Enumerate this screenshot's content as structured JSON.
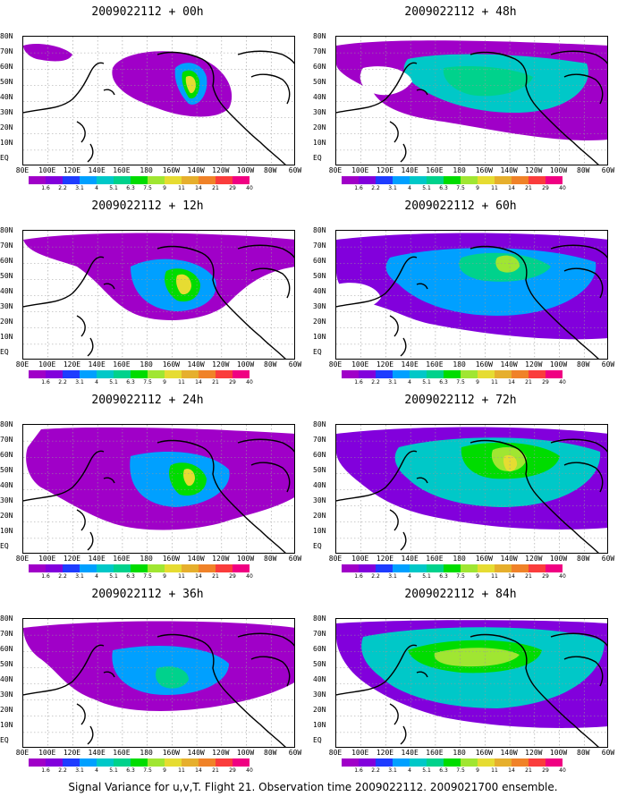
{
  "panels": [
    {
      "title": "2009022112 + 00h",
      "lead_hours": 0
    },
    {
      "title": "2009022112 + 48h",
      "lead_hours": 48
    },
    {
      "title": "2009022112 + 12h",
      "lead_hours": 12
    },
    {
      "title": "2009022112 + 60h",
      "lead_hours": 60
    },
    {
      "title": "2009022112 + 24h",
      "lead_hours": 24
    },
    {
      "title": "2009022112 + 72h",
      "lead_hours": 72
    },
    {
      "title": "2009022112 + 36h",
      "lead_hours": 36
    },
    {
      "title": "2009022112 + 84h",
      "lead_hours": 84
    }
  ],
  "lat_labels": [
    "80N",
    "70N",
    "60N",
    "50N",
    "40N",
    "30N",
    "20N",
    "10N",
    "EQ"
  ],
  "lon_labels": [
    "80E",
    "100E",
    "120E",
    "140E",
    "160E",
    "180",
    "160W",
    "140W",
    "120W",
    "100W",
    "80W",
    "60W"
  ],
  "colorbar": {
    "labels": [
      "1.6",
      "2.2",
      "3.1",
      "4",
      "5.1",
      "6.3",
      "7.5",
      "9",
      "11",
      "14",
      "21",
      "29",
      "40"
    ],
    "colors": [
      "#a000c8",
      "#8200dc",
      "#1e3cff",
      "#00a0ff",
      "#00c8c8",
      "#00d28c",
      "#00dc00",
      "#a0e632",
      "#e6dc32",
      "#e6af2d",
      "#f08228",
      "#fa3c3c",
      "#f00082"
    ]
  },
  "caption": "Signal Variance for u,v,T. Flight 21. Observation time 2009022112. 2009021700 ensemble."
}
